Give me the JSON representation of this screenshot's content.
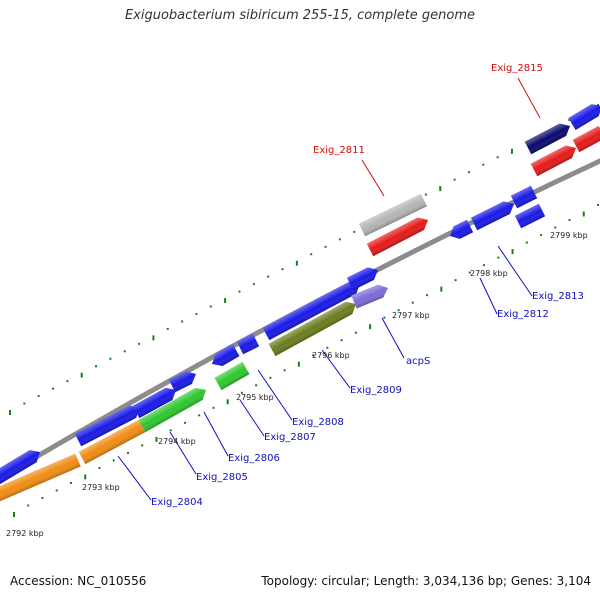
{
  "title": "Exiguobacterium sibiricum 255-15, complete genome",
  "footer": {
    "accession": "Accession: NC_010556",
    "summary": "Topology: circular; Length: 3,034,136 bp; Genes: 3,104"
  },
  "colors": {
    "forward_gene": "#1a1ae6",
    "rna_gene": "#e61a1a",
    "pseudo_gene": "#b5b5b5",
    "dark_gene": "#0a0a6e",
    "orange_gene": "#f08c14",
    "green_gene": "#2ec82e",
    "olive_gene": "#6b7d1f",
    "purple_gene": "#7b6cd9",
    "backbone": "#8c8c8c",
    "tick": "#1e7a1e",
    "label_blue": "#1010c0",
    "label_red": "#d01010"
  },
  "kbp_markers": [
    "2792 kbp",
    "2793 kbp",
    "2794 kbp",
    "2795 kbp",
    "2796 kbp",
    "2797 kbp",
    "2798 kbp",
    "2799 kbp"
  ],
  "gene_labels": [
    {
      "id": "Exig_2815",
      "color": "red"
    },
    {
      "id": "Exig_2811",
      "color": "red"
    },
    {
      "id": "Exig_2813",
      "color": "blue"
    },
    {
      "id": "Exig_2812",
      "color": "blue"
    },
    {
      "id": "acpS",
      "color": "blue"
    },
    {
      "id": "Exig_2809",
      "color": "blue"
    },
    {
      "id": "Exig_2808",
      "color": "blue"
    },
    {
      "id": "Exig_2807",
      "color": "blue"
    },
    {
      "id": "Exig_2806",
      "color": "blue"
    },
    {
      "id": "Exig_2805",
      "color": "blue"
    },
    {
      "id": "Exig_2804",
      "color": "blue"
    }
  ]
}
